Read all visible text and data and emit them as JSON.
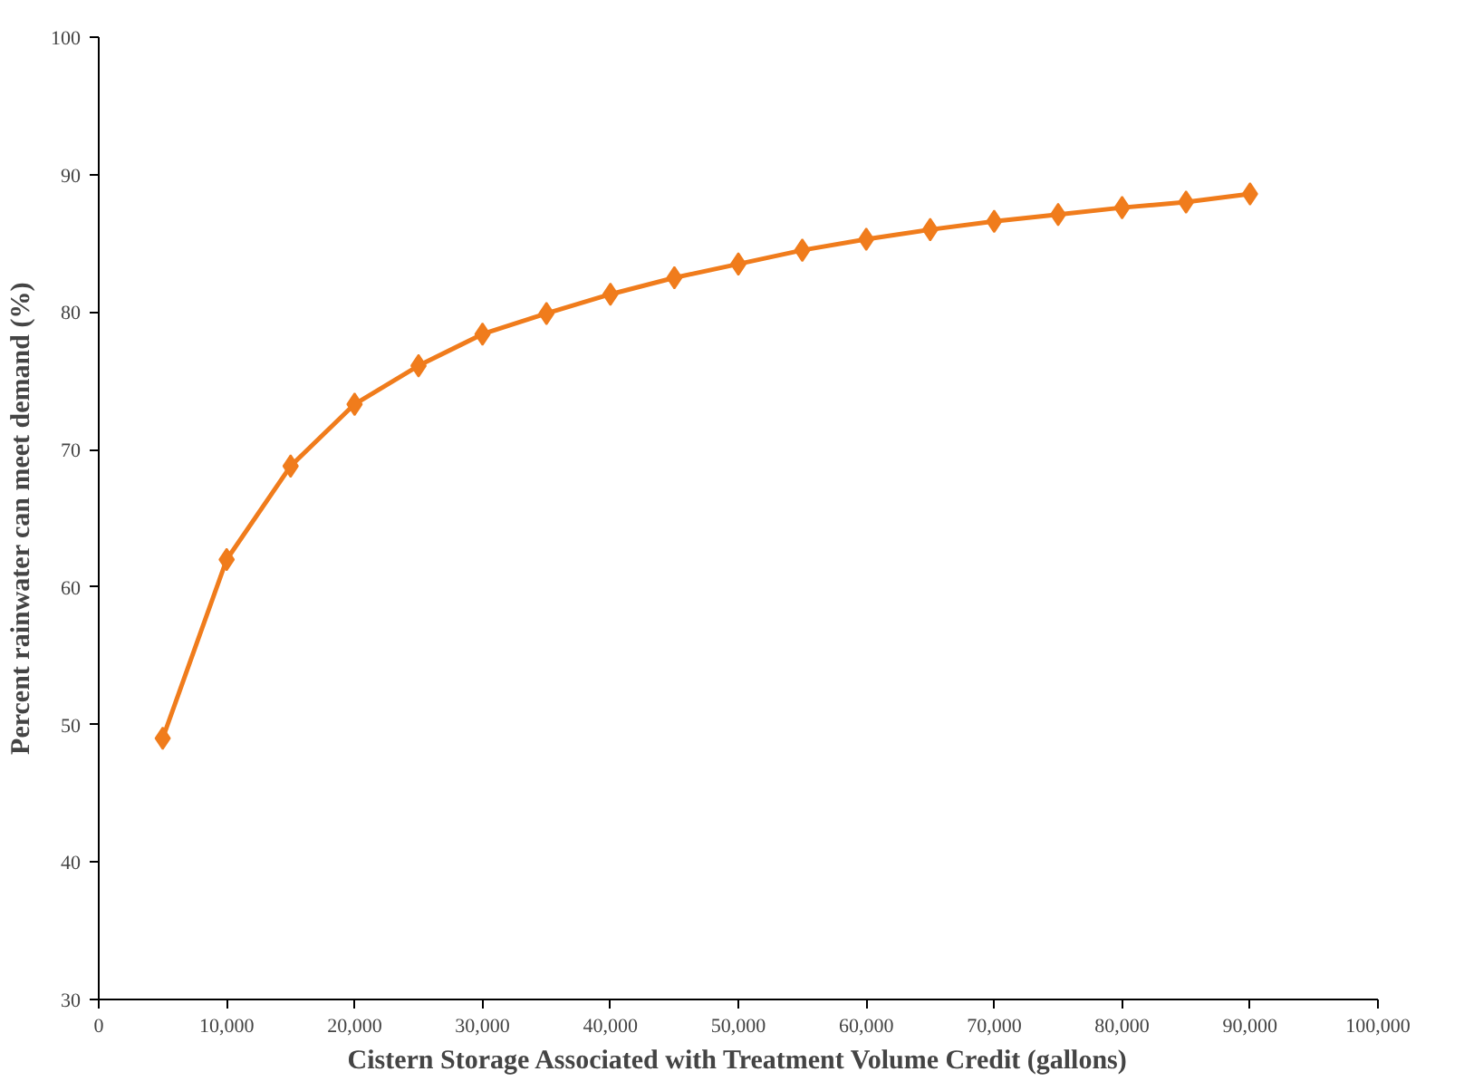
{
  "chart_data": {
    "type": "line",
    "xlabel": "Cistern Storage Associated with Treatment Volume Credit (gallons)",
    "ylabel": "Percent rainwater can meet demand (%)",
    "x": [
      5000,
      10000,
      15000,
      20000,
      25000,
      30000,
      35000,
      40000,
      45000,
      50000,
      55000,
      60000,
      65000,
      70000,
      75000,
      80000,
      85000,
      90000
    ],
    "series": [
      {
        "color": "#f07c1c",
        "values": [
          49,
          62,
          68.8,
          73.3,
          76.1,
          78.4,
          79.9,
          81.3,
          82.5,
          83.5,
          84.5,
          85.3,
          86,
          86.6,
          87.1,
          87.6,
          88,
          88.6
        ]
      }
    ],
    "xlim": [
      0,
      100000
    ],
    "ylim": [
      30,
      100
    ],
    "xticks": [
      0,
      {
        "value": 10000,
        "label": "10,000"
      },
      {
        "value": 20000,
        "label": "20,000"
      },
      {
        "value": 30000,
        "label": "30,000"
      },
      {
        "value": 40000,
        "label": "40,000"
      },
      {
        "value": 50000,
        "label": "50,000"
      },
      {
        "value": 60000,
        "label": "60,000"
      },
      {
        "value": 70000,
        "label": "70,000"
      },
      {
        "value": 80000,
        "label": "80,000"
      },
      {
        "value": 90000,
        "label": "90,000"
      },
      {
        "value": 100000,
        "label": "100,000"
      }
    ],
    "yticks": [
      30,
      40,
      50,
      60,
      70,
      80,
      90,
      100
    ],
    "grid": false,
    "marker": "diamond",
    "line_style": "solid"
  }
}
